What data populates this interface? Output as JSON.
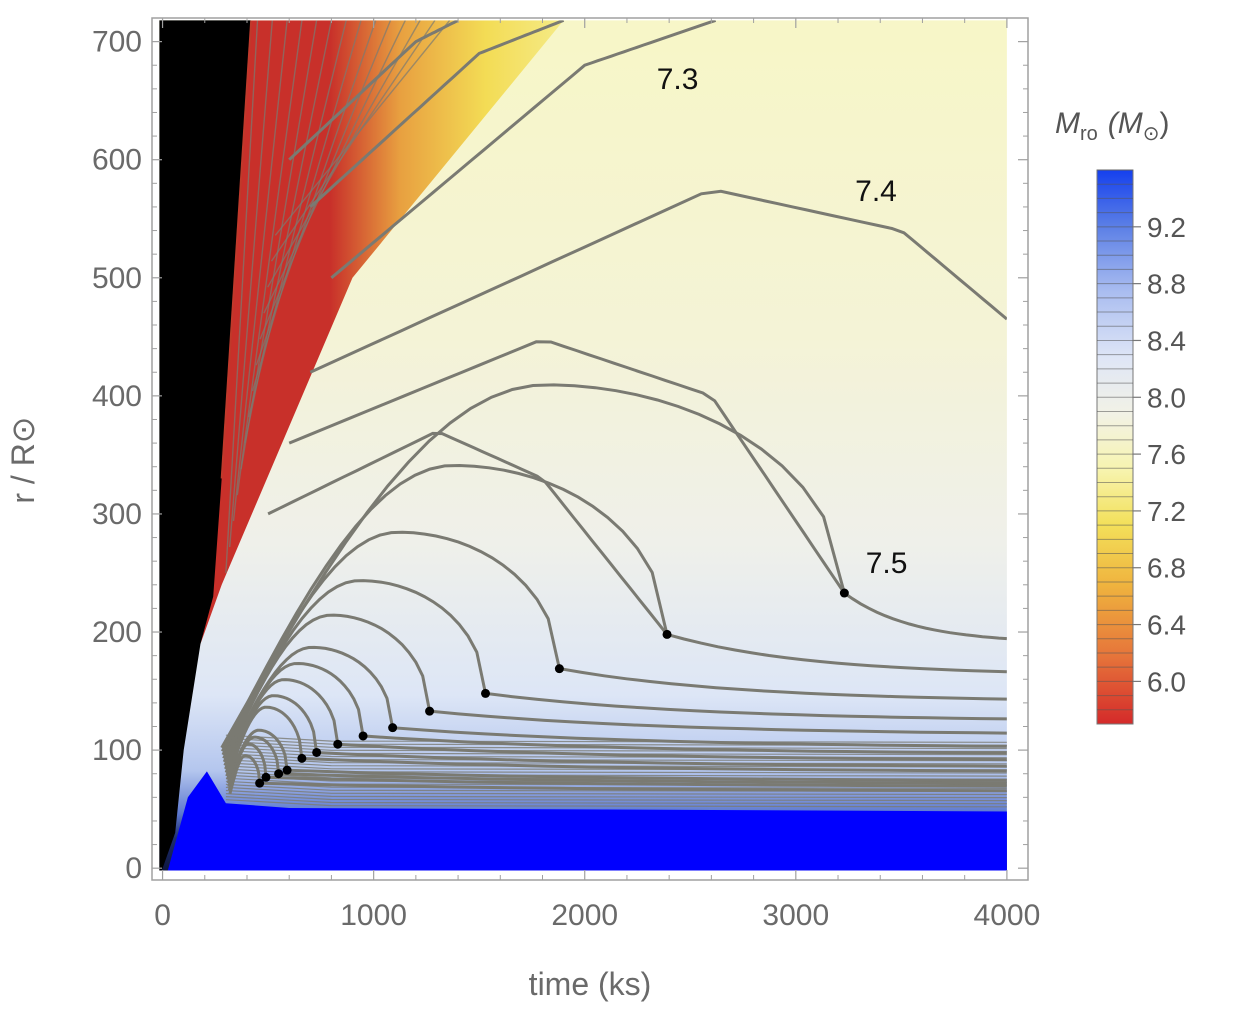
{
  "chart_data": {
    "type": "contour",
    "xlabel": "time (ks)",
    "ylabel": "r / R⊙",
    "xlim": [
      -50,
      4100
    ],
    "ylim": [
      -10,
      720
    ],
    "x_ticks": [
      0,
      1000,
      2000,
      3000,
      4000
    ],
    "y_ticks": [
      0,
      100,
      200,
      300,
      400,
      500,
      600,
      700
    ],
    "x_tick_labels": [
      "0",
      "1000",
      "2000",
      "3000",
      "4000"
    ],
    "y_tick_labels": [
      "0",
      "100",
      "200",
      "300",
      "400",
      "500",
      "600",
      "700"
    ],
    "contour_labels": [
      {
        "text": "7.3",
        "x": 2440,
        "y": 660
      },
      {
        "text": "7.4",
        "x": 3380,
        "y": 565
      },
      {
        "text": "7.5",
        "x": 3430,
        "y": 250
      }
    ],
    "colorbar": {
      "title_main": "M",
      "title_sub": "ro",
      "title_unit_main": "(M",
      "title_unit_sub": "⊙",
      "title_unit_close": ")",
      "range": [
        5.7,
        9.6
      ],
      "tick_values": [
        6.0,
        6.4,
        6.8,
        7.2,
        7.6,
        8.0,
        8.4,
        8.8,
        9.2
      ],
      "tick_labels": [
        "6.0",
        "6.4",
        "6.8",
        "7.2",
        "7.6",
        "8.0",
        "8.4",
        "8.8",
        "9.2"
      ]
    },
    "turning_points": [
      {
        "x": 3230,
        "y": 233
      },
      {
        "x": 2390,
        "y": 198
      },
      {
        "x": 1880,
        "y": 169
      },
      {
        "x": 1530,
        "y": 148
      },
      {
        "x": 1265,
        "y": 133
      },
      {
        "x": 1090,
        "y": 119
      },
      {
        "x": 950,
        "y": 112
      },
      {
        "x": 830,
        "y": 105
      },
      {
        "x": 730,
        "y": 98
      },
      {
        "x": 660,
        "y": 93
      },
      {
        "x": 590,
        "y": 83
      },
      {
        "x": 550,
        "y": 80
      },
      {
        "x": 490,
        "y": 77
      },
      {
        "x": 460,
        "y": 72
      }
    ],
    "regions": [
      {
        "name": "black-region",
        "color": "#000000"
      },
      {
        "name": "core-region",
        "color": "#0000ff"
      }
    ],
    "colors": {
      "frame": "#a0a0a0",
      "contour_line": "#7a7a72",
      "edge_line": "#c0392b"
    }
  }
}
